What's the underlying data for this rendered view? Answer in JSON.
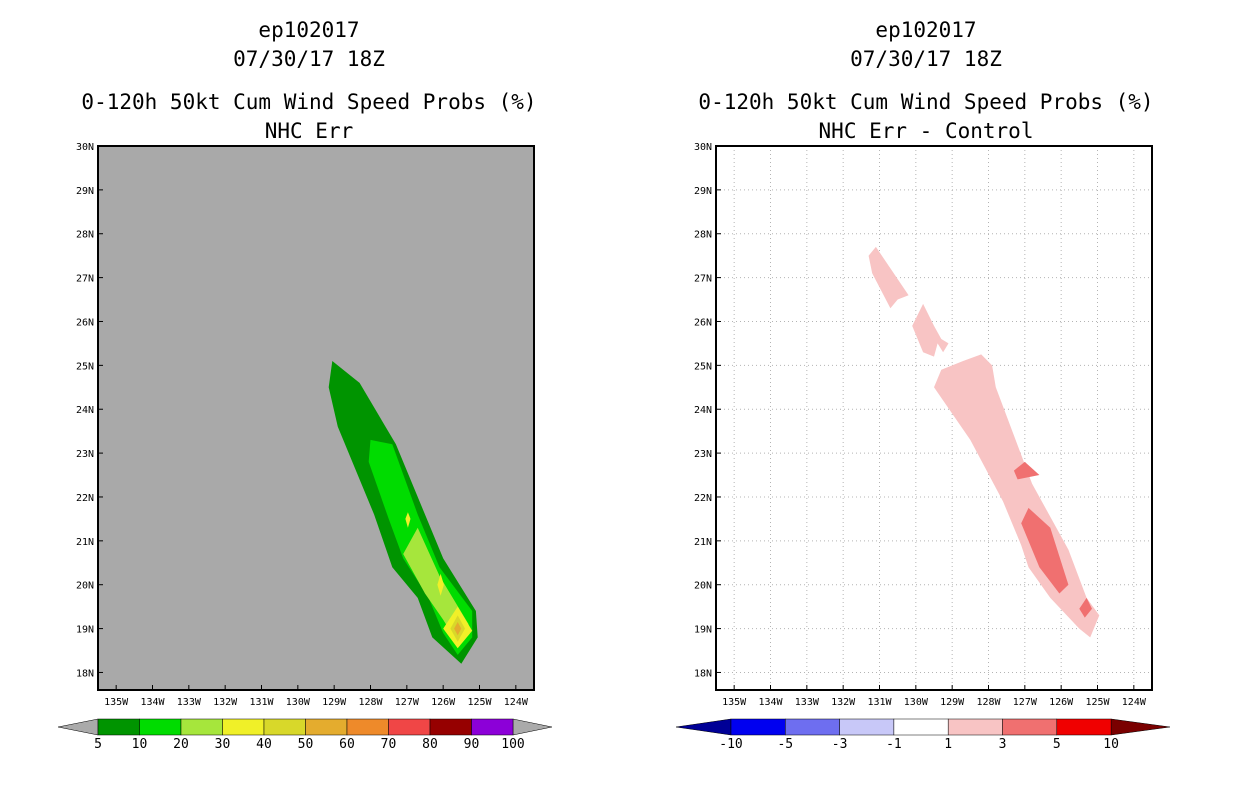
{
  "panels": [
    {
      "storm_id": "ep102017",
      "datetime": "07/30/17 18Z",
      "title": "0-120h 50kt Cum Wind Speed Probs (%)",
      "subtitle": "NHC Err",
      "background": "#a9a9a9",
      "gridlines": false,
      "x_tick_labels": [
        "135W",
        "134W",
        "133W",
        "132W",
        "131W",
        "130W",
        "129W",
        "128W",
        "127W",
        "126W",
        "125W",
        "124W"
      ],
      "y_tick_labels": [
        "18N",
        "19N",
        "20N",
        "21N",
        "22N",
        "23N",
        "24N",
        "25N",
        "26N",
        "27N",
        "28N",
        "29N",
        "30N"
      ],
      "colorbar": {
        "labels": [
          "5",
          "10",
          "20",
          "30",
          "40",
          "50",
          "60",
          "70",
          "80",
          "90",
          "100"
        ],
        "colors": [
          "#009400",
          "#00dc00",
          "#a6e63c",
          "#f0f028",
          "#d8d82a",
          "#e4ac2e",
          "#ee8a2a",
          "#f04646",
          "#960000",
          "#8c00d8"
        ],
        "end_color": "#aaaaaa"
      },
      "contours": [
        {
          "level": "5-10",
          "color": "#009400",
          "points": [
            [
              -129.05,
              25.1
            ],
            [
              -128.3,
              24.6
            ],
            [
              -127.3,
              23.2
            ],
            [
              -126.0,
              20.6
            ],
            [
              -125.1,
              19.4
            ],
            [
              -125.05,
              18.8
            ],
            [
              -125.5,
              18.2
            ],
            [
              -126.3,
              18.8
            ],
            [
              -126.7,
              19.7
            ],
            [
              -127.4,
              20.4
            ],
            [
              -127.9,
              21.6
            ],
            [
              -128.9,
              23.6
            ],
            [
              -129.15,
              24.5
            ]
          ]
        },
        {
          "level": "10-20",
          "color": "#00dc00",
          "points": [
            [
              -128.0,
              23.3
            ],
            [
              -127.4,
              23.2
            ],
            [
              -126.7,
              21.6
            ],
            [
              -126.1,
              20.4
            ],
            [
              -125.2,
              19.4
            ],
            [
              -125.2,
              18.8
            ],
            [
              -125.6,
              18.4
            ],
            [
              -126.0,
              18.9
            ],
            [
              -126.4,
              19.7
            ],
            [
              -127.1,
              20.6
            ],
            [
              -127.5,
              21.5
            ],
            [
              -128.05,
              22.8
            ]
          ]
        },
        {
          "level": "20-30",
          "color": "#a6e63c",
          "points": [
            [
              -126.7,
              21.3
            ],
            [
              -126.1,
              20.2
            ],
            [
              -125.3,
              19.1
            ],
            [
              -125.55,
              18.6
            ],
            [
              -126.0,
              19.2
            ],
            [
              -126.5,
              19.8
            ],
            [
              -127.1,
              20.7
            ]
          ]
        },
        {
          "level": "30-40",
          "color": "#f0f028",
          "points": [
            [
              -125.6,
              19.5
            ],
            [
              -125.2,
              18.95
            ],
            [
              -125.6,
              18.55
            ],
            [
              -126.0,
              19.0
            ]
          ]
        },
        {
          "level": "30-40",
          "color": "#f0f028",
          "points": [
            [
              -126.07,
              20.25
            ],
            [
              -125.98,
              20.0
            ],
            [
              -126.07,
              19.75
            ],
            [
              -126.16,
              20.0
            ]
          ]
        },
        {
          "level": "30-40",
          "color": "#f0f028",
          "points": [
            [
              -126.97,
              21.65
            ],
            [
              -126.9,
              21.5
            ],
            [
              -126.97,
              21.3
            ],
            [
              -127.04,
              21.5
            ]
          ]
        },
        {
          "level": "40-50",
          "color": "#d8d82a",
          "points": [
            [
              -125.6,
              19.3
            ],
            [
              -125.4,
              19.0
            ],
            [
              -125.6,
              18.7
            ],
            [
              -125.8,
              19.0
            ]
          ]
        },
        {
          "level": "50-60",
          "color": "#e4ac2e",
          "points": [
            [
              -125.6,
              19.15
            ],
            [
              -125.5,
              19.0
            ],
            [
              -125.6,
              18.85
            ],
            [
              -125.7,
              19.0
            ]
          ]
        }
      ]
    },
    {
      "storm_id": "ep102017",
      "datetime": "07/30/17 18Z",
      "title": "0-120h 50kt Cum Wind Speed Probs (%)",
      "subtitle": "NHC Err - Control",
      "background": "#ffffff",
      "gridlines": true,
      "x_tick_labels": [
        "135W",
        "134W",
        "133W",
        "132W",
        "131W",
        "130W",
        "129W",
        "128W",
        "127W",
        "126W",
        "125W",
        "124W"
      ],
      "y_tick_labels": [
        "18N",
        "19N",
        "20N",
        "21N",
        "22N",
        "23N",
        "24N",
        "25N",
        "26N",
        "27N",
        "28N",
        "29N",
        "30N"
      ],
      "colorbar": {
        "labels": [
          "-10",
          "-5",
          "-3",
          "-1",
          "1",
          "3",
          "5",
          "10"
        ],
        "colors": [
          "#0000f0",
          "#6e6ef0",
          "#c8c8f8",
          "#ffffff",
          "#f8c4c4",
          "#f07070",
          "#f00000"
        ],
        "start_color": "#000096",
        "end_color": "#7a0000"
      },
      "contours": [
        {
          "level": "1-3",
          "color": "#f8c4c4",
          "points": [
            [
              -131.1,
              27.7
            ],
            [
              -130.2,
              26.6
            ],
            [
              -130.5,
              26.5
            ],
            [
              -130.7,
              26.3
            ],
            [
              -131.2,
              27.1
            ],
            [
              -131.3,
              27.5
            ]
          ]
        },
        {
          "level": "1-3",
          "color": "#f8c4c4",
          "points": [
            [
              -129.8,
              26.4
            ],
            [
              -129.5,
              25.9
            ],
            [
              -129.3,
              25.6
            ],
            [
              -129.1,
              25.5
            ],
            [
              -129.25,
              25.3
            ],
            [
              -129.4,
              25.5
            ],
            [
              -129.5,
              25.2
            ],
            [
              -129.8,
              25.3
            ],
            [
              -130.1,
              25.9
            ]
          ]
        },
        {
          "level": "1-3",
          "color": "#f8c4c4",
          "points": [
            [
              -128.2,
              25.25
            ],
            [
              -127.9,
              25.0
            ],
            [
              -127.8,
              24.5
            ],
            [
              -126.8,
              22.3
            ],
            [
              -125.8,
              20.8
            ],
            [
              -125.3,
              19.7
            ],
            [
              -124.95,
              19.3
            ],
            [
              -125.2,
              18.8
            ],
            [
              -125.5,
              19.0
            ],
            [
              -126.3,
              19.7
            ],
            [
              -126.9,
              20.4
            ],
            [
              -127.1,
              20.9
            ],
            [
              -127.6,
              21.9
            ],
            [
              -128.5,
              23.3
            ],
            [
              -129.5,
              24.5
            ],
            [
              -129.3,
              24.9
            ],
            [
              -128.7,
              25.1
            ]
          ]
        },
        {
          "level": "3-5",
          "color": "#f07070",
          "points": [
            [
              -127.0,
              22.8
            ],
            [
              -126.6,
              22.5
            ],
            [
              -127.2,
              22.4
            ],
            [
              -127.3,
              22.6
            ]
          ]
        },
        {
          "level": "3-5",
          "color": "#f07070",
          "points": [
            [
              -126.9,
              21.75
            ],
            [
              -126.3,
              21.3
            ],
            [
              -125.8,
              20.0
            ],
            [
              -126.05,
              19.8
            ],
            [
              -126.6,
              20.4
            ],
            [
              -127.1,
              21.4
            ]
          ]
        },
        {
          "level": "3-5",
          "color": "#f07070",
          "points": [
            [
              -125.3,
              19.7
            ],
            [
              -125.15,
              19.45
            ],
            [
              -125.35,
              19.25
            ],
            [
              -125.5,
              19.45
            ]
          ]
        }
      ]
    }
  ]
}
